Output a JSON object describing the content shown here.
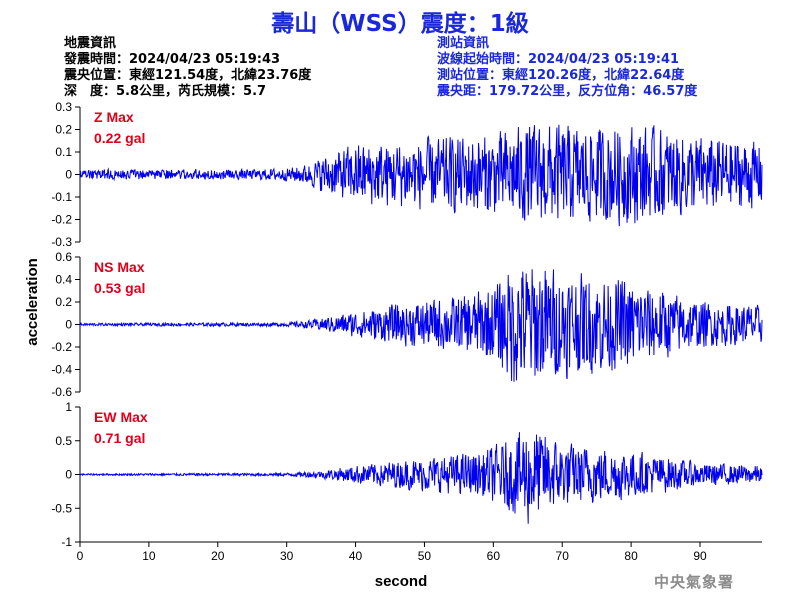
{
  "title": "壽山（WSS）震度：1級",
  "quake_info": {
    "heading": "地震資訊",
    "origin_time": "發震時間：2024/04/23 05:19:43",
    "epicenter": "震央位置：東經121.54度，北緯23.76度",
    "depth_magnitude": "深　度：5.8公里，芮氏規模：5.7"
  },
  "station_info": {
    "heading": "測站資訊",
    "arrival_time": "波線起始時間：2024/04/23 05:19:41",
    "location": "測站位置：東經120.26度，北緯22.64度",
    "distance_azimuth": "震央距：179.72公里，反方位角：46.57度"
  },
  "footer": "中央氣象署",
  "colors": {
    "title": "#1a28d8",
    "trace": "#0000ee",
    "max_label": "#e0001a"
  },
  "chart_data": {
    "type": "line",
    "xlabel": "second",
    "ylabel": "acceleration",
    "xlim": [
      0,
      99
    ],
    "x_ticks": [
      0,
      10,
      20,
      30,
      40,
      50,
      60,
      70,
      80,
      90
    ],
    "grid": false,
    "panels": [
      {
        "name": "Z",
        "max_title": "Z Max",
        "max_value": "0.22 gal",
        "ylim": [
          -0.3,
          0.3
        ],
        "y_ticks": [
          -0.3,
          -0.2,
          -0.1,
          0,
          0.1,
          0.2,
          0.3
        ],
        "y_tick_labels": [
          "-0.3",
          "-0.2",
          "-0.1",
          "0",
          "0.1",
          "0.2",
          "0.3"
        ],
        "envelope": [
          [
            0,
            0.02
          ],
          [
            25,
            0.02
          ],
          [
            30,
            0.025
          ],
          [
            33,
            0.04
          ],
          [
            36,
            0.08
          ],
          [
            40,
            0.12
          ],
          [
            50,
            0.14
          ],
          [
            60,
            0.16
          ],
          [
            65,
            0.2
          ],
          [
            75,
            0.19
          ],
          [
            80,
            0.2
          ],
          [
            90,
            0.15
          ],
          [
            99,
            0.13
          ]
        ]
      },
      {
        "name": "NS",
        "max_title": "NS Max",
        "max_value": "0.53 gal",
        "ylim": [
          -0.6,
          0.6
        ],
        "y_ticks": [
          -0.6,
          -0.4,
          -0.2,
          0,
          0.2,
          0.4,
          0.6
        ],
        "y_tick_labels": [
          "-0.6",
          "-0.4",
          "-0.2",
          "0",
          "0.2",
          "0.4",
          "0.6"
        ],
        "envelope": [
          [
            0,
            0.01
          ],
          [
            30,
            0.015
          ],
          [
            33,
            0.03
          ],
          [
            38,
            0.08
          ],
          [
            45,
            0.15
          ],
          [
            55,
            0.22
          ],
          [
            60,
            0.3
          ],
          [
            63,
            0.5
          ],
          [
            66,
            0.5
          ],
          [
            70,
            0.42
          ],
          [
            80,
            0.35
          ],
          [
            90,
            0.18
          ],
          [
            99,
            0.15
          ]
        ]
      },
      {
        "name": "EW",
        "max_title": "EW Max",
        "max_value": "0.71 gal",
        "ylim": [
          -1,
          1
        ],
        "y_ticks": [
          -1,
          -0.5,
          0,
          0.5,
          1
        ],
        "y_tick_labels": [
          "-1",
          "-0.5",
          "0",
          "0.5",
          "1"
        ],
        "envelope": [
          [
            0,
            0.01
          ],
          [
            30,
            0.02
          ],
          [
            35,
            0.05
          ],
          [
            40,
            0.12
          ],
          [
            50,
            0.22
          ],
          [
            58,
            0.3
          ],
          [
            62,
            0.45
          ],
          [
            65,
            0.68
          ],
          [
            70,
            0.42
          ],
          [
            80,
            0.32
          ],
          [
            90,
            0.15
          ],
          [
            99,
            0.12
          ]
        ]
      }
    ]
  }
}
